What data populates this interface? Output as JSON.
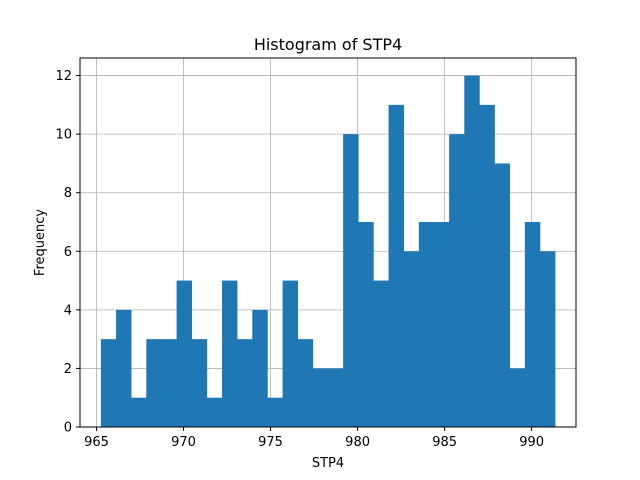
{
  "chart_data": {
    "type": "bar",
    "title": "Histogram of STP4",
    "xlabel": "STP4",
    "ylabel": "Frequency",
    "xlim": [
      964.05,
      992.55
    ],
    "ylim": [
      0,
      12.6
    ],
    "bin_start": 965.25,
    "bin_width": 0.87,
    "values": [
      3,
      4,
      1,
      3,
      3,
      5,
      3,
      1,
      5,
      3,
      4,
      1,
      5,
      3,
      2,
      2,
      10,
      7,
      5,
      11,
      6,
      7,
      7,
      10,
      12,
      11,
      9,
      2,
      7,
      6
    ],
    "xticks": [
      965,
      970,
      975,
      980,
      985,
      990
    ],
    "yticks": [
      0,
      2,
      4,
      6,
      8,
      10,
      12
    ],
    "grid": true,
    "bar_color": "#1f77b4",
    "grid_color": "#b0b0b0"
  }
}
